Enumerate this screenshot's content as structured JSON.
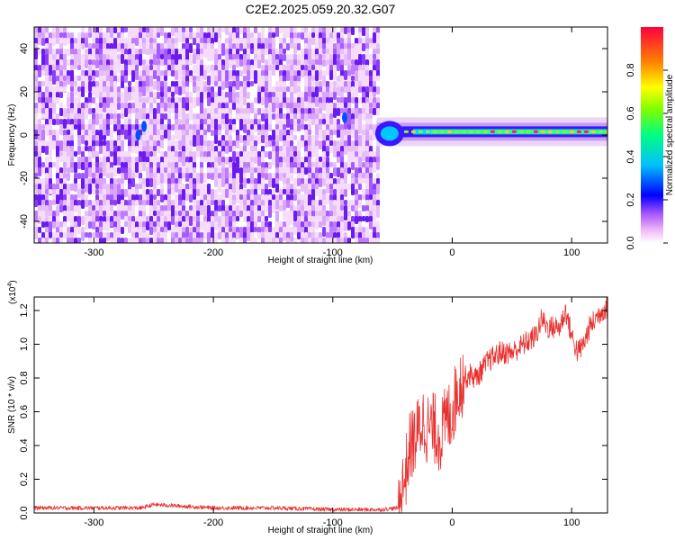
{
  "title": "C2E2.2025.059.20.32.G07",
  "chart_data": [
    {
      "type": "heatmap",
      "xlabel": "Height of straight line (km)",
      "ylabel": "Frequency (Hz)",
      "xlim": [
        -350,
        130
      ],
      "ylim": [
        -50,
        50
      ],
      "xticks": [
        -300,
        -200,
        -100,
        0,
        100
      ],
      "yticks": [
        -40,
        -20,
        0,
        20,
        40
      ],
      "noise_region_x": [
        -350,
        -63
      ],
      "signal_line": {
        "x_start": -63,
        "x_end": 130,
        "frequency": 1.5
      },
      "colorbar": {
        "label": "Normalized spectral amplitude",
        "range": [
          0.0,
          1.0
        ],
        "ticks": [
          0.0,
          0.2,
          0.4,
          0.6,
          0.8
        ],
        "colors": [
          "#f0b8f8",
          "#a050ff",
          "#0000ff",
          "#00c0ff",
          "#00ff80",
          "#80ff00",
          "#ffff00",
          "#ff8000",
          "#ff0040"
        ]
      }
    },
    {
      "type": "line",
      "xlabel": "Height of straight line (km)",
      "ylabel": "SNR (10 * v/v)",
      "yscale_label": "(x10",
      "yscale_exp": "4",
      "xlim": [
        -350,
        130
      ],
      "ylim": [
        0,
        1.28
      ],
      "xticks": [
        -300,
        -200,
        -100,
        0,
        100
      ],
      "yticks": [
        0.0,
        0.2,
        0.4,
        0.6,
        0.8,
        1.0,
        1.2
      ],
      "line_color": "#e8312f",
      "series": [
        {
          "x": [
            -350,
            -300,
            -260,
            -250,
            -200,
            -150,
            -100,
            -60,
            -45,
            -40,
            -35,
            -30,
            -25,
            -20,
            -15,
            -10,
            -5,
            0,
            5,
            10,
            15,
            20,
            25,
            30,
            40,
            50,
            60,
            70,
            75,
            80,
            90,
            95,
            100,
            105,
            110,
            115,
            120,
            125,
            130
          ],
          "y": [
            0.03,
            0.03,
            0.03,
            0.05,
            0.03,
            0.03,
            0.02,
            0.02,
            0.03,
            0.2,
            0.4,
            0.45,
            0.55,
            0.5,
            0.5,
            0.45,
            0.55,
            0.6,
            0.75,
            0.8,
            0.82,
            0.8,
            0.85,
            0.9,
            0.95,
            0.95,
            1.0,
            1.05,
            1.15,
            1.1,
            1.1,
            1.2,
            1.05,
            0.95,
            1.0,
            1.1,
            1.15,
            1.2,
            1.22
          ]
        }
      ]
    }
  ]
}
